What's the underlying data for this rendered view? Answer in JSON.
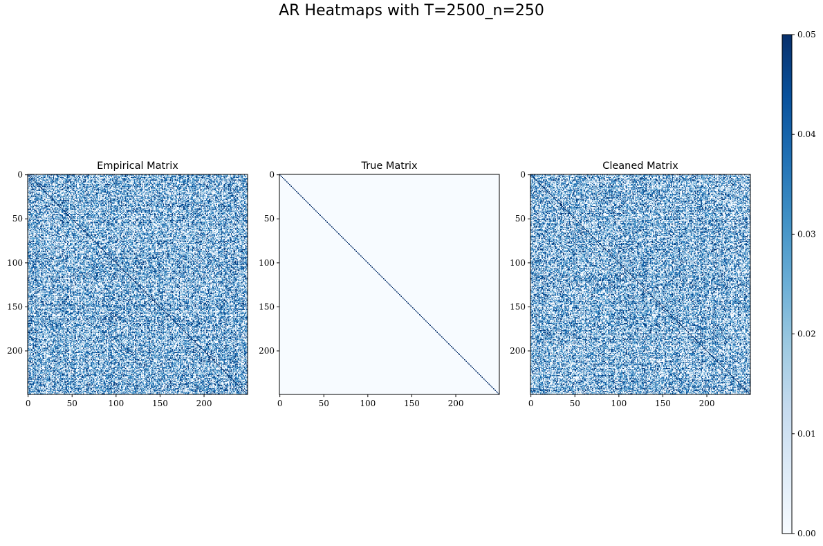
{
  "figure": {
    "title": "AR Heatmaps with T=2500_n=250"
  },
  "chart_data": [
    {
      "type": "heatmap",
      "title": "Empirical Matrix",
      "n": 250,
      "pattern": "noisy-diagonal",
      "xticks": [
        0,
        50,
        100,
        150,
        200
      ],
      "yticks": [
        0,
        50,
        100,
        150,
        200
      ],
      "colormap": "Blues",
      "vmin": 0.0,
      "vmax": 0.05
    },
    {
      "type": "heatmap",
      "title": "True Matrix",
      "n": 250,
      "pattern": "diagonal",
      "xticks": [
        0,
        50,
        100,
        150,
        200
      ],
      "yticks": [
        0,
        50,
        100,
        150,
        200
      ],
      "colormap": "Blues",
      "vmin": 0.0,
      "vmax": 0.05
    },
    {
      "type": "heatmap",
      "title": "Cleaned Matrix",
      "n": 250,
      "pattern": "noisy-diagonal",
      "xticks": [
        0,
        50,
        100,
        150,
        200
      ],
      "yticks": [
        0,
        50,
        100,
        150,
        200
      ],
      "colormap": "Blues",
      "vmin": 0.0,
      "vmax": 0.05
    }
  ],
  "colorbar": {
    "ticks": [
      "0.00",
      "0.01",
      "0.02",
      "0.03",
      "0.04",
      "0.05"
    ],
    "colors": [
      "#f7fbff",
      "#deebf7",
      "#c6dbef",
      "#9ecae1",
      "#6baed6",
      "#4292c6",
      "#2171b5",
      "#08519c",
      "#08306b"
    ]
  }
}
